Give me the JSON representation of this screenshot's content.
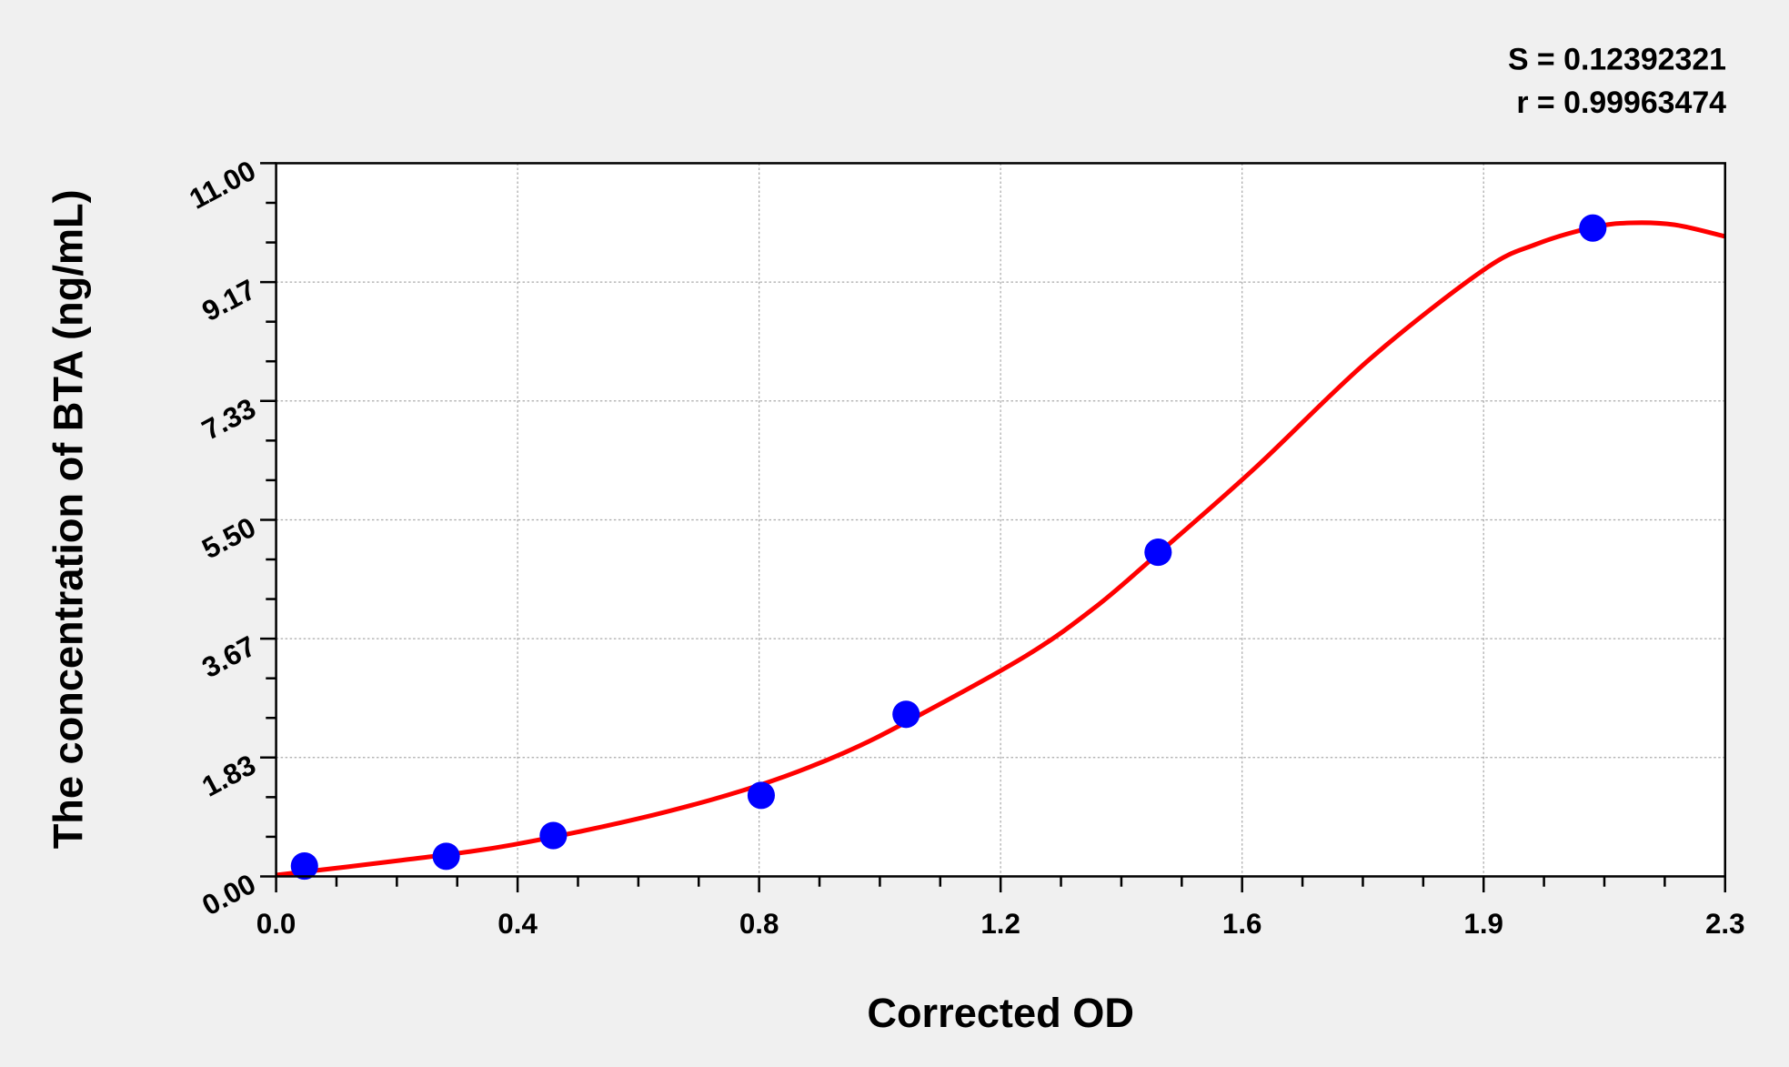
{
  "chart_data": {
    "type": "scatter",
    "title": "",
    "xlabel": "Corrected OD",
    "ylabel": "The concentration of BTA (ng/mL)",
    "xlim": [
      0,
      2.3
    ],
    "ylim": [
      0,
      11
    ],
    "x_ticks": [
      "0.0",
      "0.4",
      "0.8",
      "1.2",
      "1.6",
      "1.9",
      "2.3"
    ],
    "y_ticks": [
      "0.00",
      "1.83",
      "3.67",
      "5.50",
      "7.33",
      "9.17",
      "11.00"
    ],
    "grid": true,
    "annotations": [
      "S = 0.12392321",
      "r = 0.99963474"
    ],
    "series": [
      {
        "type": "scatter",
        "color": "#0000ff",
        "x": [
          0.045,
          0.27,
          0.44,
          0.77,
          1.0,
          1.4,
          2.09
        ],
        "y": [
          0.16,
          0.31,
          0.63,
          1.25,
          2.5,
          5.0,
          10.0
        ]
      },
      {
        "type": "line",
        "color": "#ff0000",
        "x": [
          0,
          0.2,
          0.377,
          0.6,
          0.768,
          0.9,
          1.01,
          1.19,
          1.3,
          1.4,
          1.554,
          1.735,
          1.916,
          2.0,
          2.09,
          2.15,
          2.22,
          2.3
        ],
        "y": [
          0.02,
          0.25,
          0.49,
          0.95,
          1.41,
          1.9,
          2.43,
          3.4,
          4.15,
          4.98,
          6.3,
          7.97,
          9.35,
          9.75,
          10.01,
          10.08,
          10.05,
          9.87
        ]
      }
    ]
  }
}
